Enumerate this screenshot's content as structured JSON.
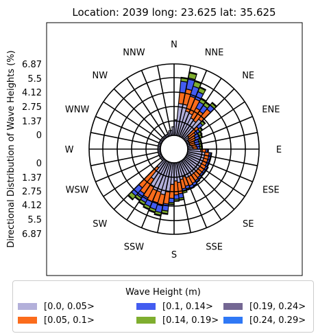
{
  "chart_data": {
    "type": "polar-bar",
    "title": "Location: 2039 long: 23.625 lat: 35.625",
    "ylabel": "Directional Distribution of Wave Heights (%)",
    "radial_ticks_upper": [
      "6.87",
      "5.5",
      "4.12",
      "2.75",
      "1.37",
      "0"
    ],
    "radial_ticks_lower": [
      "0",
      "1.37",
      "2.75",
      "4.12",
      "5.5",
      "6.87"
    ],
    "rmax": 8.25,
    "directions": [
      "N",
      "NNE",
      "NE",
      "ENE",
      "E",
      "ESE",
      "SE",
      "SSE",
      "S",
      "SSW",
      "SW",
      "WSW",
      "W",
      "WNW",
      "NW",
      "NNW"
    ],
    "bins_per_direction": 4,
    "legend_title": "Wave Height (m)",
    "series": [
      {
        "name": "[0.0, 0.05>",
        "color": "#b3b0da",
        "values": [
          1.8,
          3.7,
          3.7,
          3.0,
          2.9,
          2.5,
          2.4,
          2.9,
          0.6,
          0.5,
          0.3,
          0.3,
          0.3,
          0.3,
          0.5,
          0.6,
          1.5,
          2.0,
          2.0,
          2.0,
          2.0,
          2.0,
          2.0,
          2.0,
          2.0,
          2.0,
          2.0,
          2.0,
          1.8,
          2.0,
          2.3,
          2.1,
          2.5,
          3.4,
          3.8,
          3.6,
          3.6,
          3.4,
          2.6,
          1.2,
          0.3,
          0.3,
          0.3,
          0.3,
          0.3,
          0.3,
          0.3,
          0.3,
          0.3,
          0.3,
          0.3,
          0.3,
          0.3,
          0.3,
          0.3,
          0.3,
          0.3,
          0.3,
          0.3,
          0.3,
          0.4,
          0.6,
          0.6,
          1.0
        ]
      },
      {
        "name": "[0.05, 0.1>",
        "color": "#fb6c1c",
        "values": [
          0,
          1.3,
          1.8,
          1.8,
          1.8,
          1.3,
          1.3,
          1.5,
          1.5,
          0.9,
          0.9,
          0.8,
          0.6,
          0.6,
          0.5,
          0.5,
          0.6,
          0.5,
          0.5,
          0.5,
          0.5,
          0.6,
          0.6,
          0.6,
          0.7,
          0.8,
          0.9,
          1.0,
          1.1,
          1.1,
          1.3,
          1.6,
          1.6,
          1.4,
          1.3,
          1.3,
          1.4,
          1.4,
          2.0,
          3.0,
          0,
          0,
          0,
          0,
          0,
          0,
          0,
          0,
          0,
          0,
          0,
          0,
          0,
          0,
          0,
          0,
          0,
          0,
          0,
          0,
          0,
          0,
          0,
          0
        ]
      },
      {
        "name": "[0.1, 0.14>",
        "color": "#435cf0",
        "values": [
          0,
          1.3,
          1.3,
          1.2,
          0.9,
          0.8,
          0.8,
          0.6,
          0.6,
          0.6,
          0.5,
          0.5,
          0.5,
          0.5,
          0.4,
          0.3,
          0.2,
          0.2,
          0.2,
          0.2,
          0.2,
          0.2,
          0.2,
          0.2,
          0.2,
          0.2,
          0.3,
          0.3,
          0.3,
          0.3,
          0.5,
          0.5,
          0.5,
          0.8,
          0.8,
          0.8,
          0.6,
          0.6,
          0.6,
          1.2,
          0,
          0,
          0,
          0,
          0,
          0,
          0,
          0,
          0,
          0,
          0,
          0,
          0,
          0,
          0,
          0,
          0,
          0,
          0,
          0,
          0,
          0,
          0,
          0
        ]
      },
      {
        "name": "[0.14, 0.19>",
        "color": "#7fae2f",
        "values": [
          0,
          0.4,
          0.6,
          0.6,
          0.5,
          0.4,
          0.4,
          0.3,
          0.3,
          0.3,
          0.3,
          0.3,
          0.2,
          0.2,
          0.2,
          0.2,
          0.1,
          0.1,
          0.1,
          0.1,
          0.1,
          0.1,
          0.1,
          0.1,
          0.1,
          0.1,
          0.1,
          0.1,
          0.2,
          0.2,
          0.2,
          0.2,
          0.2,
          0.3,
          0.3,
          0.3,
          0.3,
          0.3,
          0.3,
          0.5,
          0,
          0,
          0,
          0,
          0,
          0,
          0,
          0,
          0,
          0,
          0,
          0,
          0,
          0,
          0,
          0,
          0,
          0,
          0,
          0,
          0,
          0,
          0,
          0
        ]
      },
      {
        "name": "[0.19, 0.24>",
        "color": "#746793",
        "values": [
          0,
          0.05,
          0.1,
          0.1,
          0.1,
          0.1,
          0.1,
          0.1,
          0.1,
          0.1,
          0.1,
          0.1,
          0.1,
          0.1,
          0.1,
          0.1,
          0,
          0,
          0,
          0,
          0,
          0,
          0,
          0,
          0,
          0,
          0,
          0,
          0,
          0,
          0.05,
          0.05,
          0.05,
          0.1,
          0.1,
          0.1,
          0.1,
          0.1,
          0.1,
          0.1,
          0,
          0,
          0,
          0,
          0,
          0,
          0,
          0,
          0,
          0,
          0,
          0,
          0,
          0,
          0,
          0,
          0,
          0,
          0,
          0,
          0,
          0,
          0,
          0
        ]
      },
      {
        "name": "[0.24, 0.29>",
        "color": "#2f78f5",
        "values": [
          0,
          0,
          0,
          0,
          0,
          0,
          0,
          0,
          0,
          0,
          0,
          0,
          0,
          0,
          0,
          0,
          0,
          0,
          0,
          0,
          0,
          0,
          0,
          0,
          0,
          0,
          0,
          0,
          0,
          0,
          0,
          0,
          0,
          0,
          0,
          0,
          0,
          0,
          0,
          0,
          0,
          0,
          0,
          0,
          0,
          0,
          0,
          0,
          0,
          0,
          0,
          0,
          0,
          0,
          0,
          0,
          0,
          0,
          0,
          0,
          0,
          0,
          0,
          0,
          0
        ]
      }
    ]
  }
}
